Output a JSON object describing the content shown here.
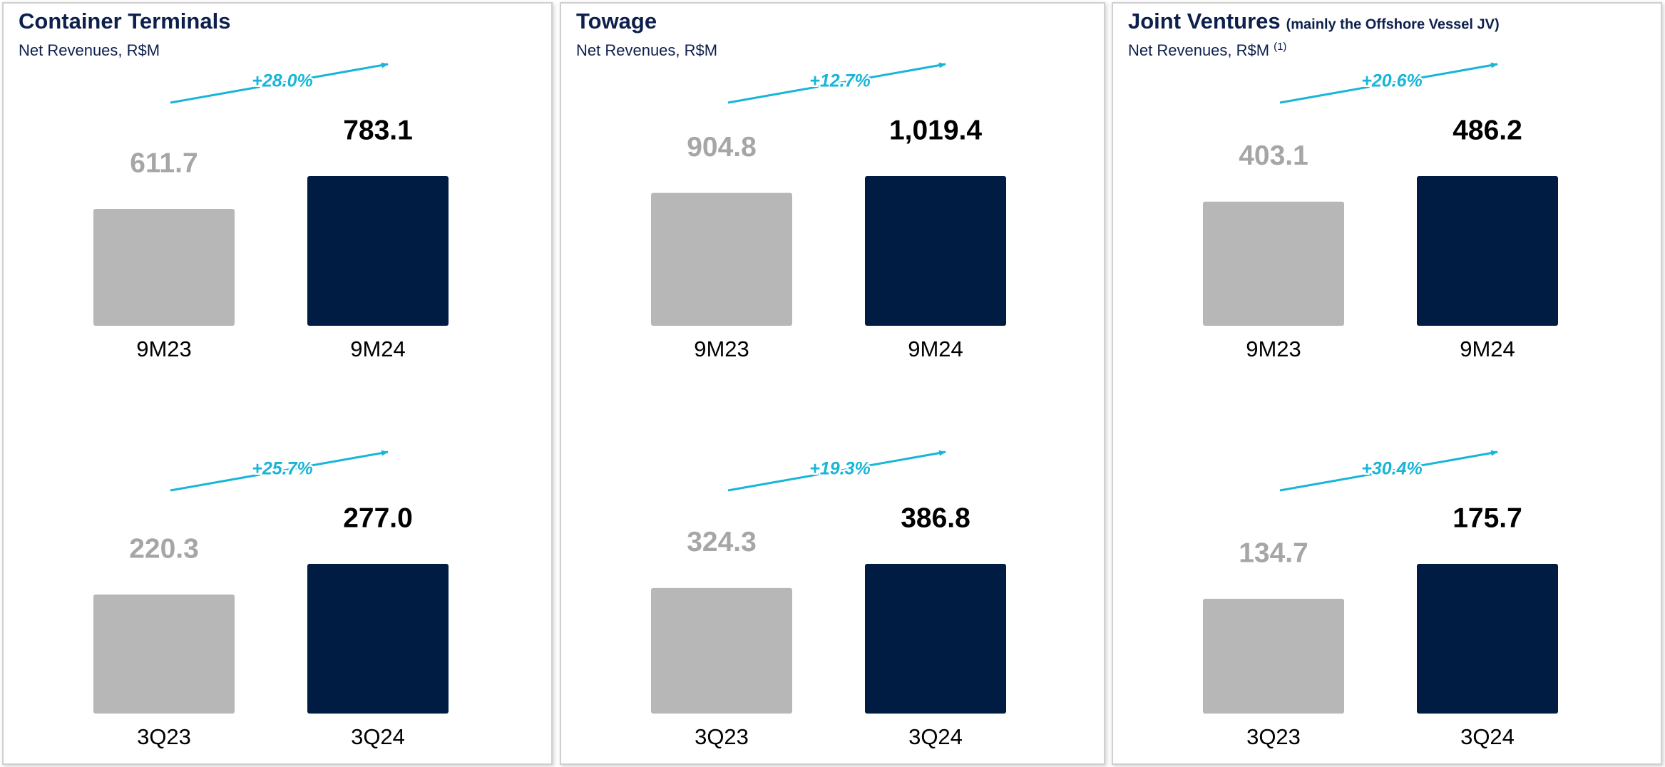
{
  "chart_data": [
    {
      "type": "bar",
      "title": "Container Terminals",
      "subtitle": "Net Revenues, R$M",
      "categories": [
        "9M23",
        "9M24"
      ],
      "values": [
        611.7,
        783.1
      ],
      "value_labels": [
        "611.7",
        "783.1"
      ],
      "colors": [
        "#b7b7b7",
        "#001c43"
      ],
      "annotation": "+28.0%"
    },
    {
      "type": "bar",
      "categories": [
        "3Q23",
        "3Q24"
      ],
      "values": [
        220.3,
        277.0
      ],
      "value_labels": [
        "220.3",
        "277.0"
      ],
      "colors": [
        "#b7b7b7",
        "#001c43"
      ],
      "annotation": "+25.7%"
    },
    {
      "type": "bar",
      "title": "Towage",
      "subtitle": "Net Revenues, R$M",
      "categories": [
        "9M23",
        "9M24"
      ],
      "values": [
        904.8,
        1019.4
      ],
      "value_labels": [
        "904.8",
        "1,019.4"
      ],
      "colors": [
        "#b7b7b7",
        "#001c43"
      ],
      "annotation": "+12.7%"
    },
    {
      "type": "bar",
      "categories": [
        "3Q23",
        "3Q24"
      ],
      "values": [
        324.3,
        386.8
      ],
      "value_labels": [
        "324.3",
        "386.8"
      ],
      "colors": [
        "#b7b7b7",
        "#001c43"
      ],
      "annotation": "+19.3%"
    },
    {
      "type": "bar",
      "title": "Joint Ventures",
      "title_note": "(mainly the Offshore Vessel JV)",
      "subtitle": "Net Revenues, R$M",
      "subtitle_note": "(1)",
      "categories": [
        "9M23",
        "9M24"
      ],
      "values": [
        403.1,
        486.2
      ],
      "value_labels": [
        "403.1",
        "486.2"
      ],
      "colors": [
        "#b7b7b7",
        "#001c43"
      ],
      "annotation": "+20.6%"
    },
    {
      "type": "bar",
      "categories": [
        "3Q23",
        "3Q24"
      ],
      "values": [
        134.7,
        175.7
      ],
      "value_labels": [
        "134.7",
        "175.7"
      ],
      "colors": [
        "#b7b7b7",
        "#001c43"
      ],
      "annotation": "+30.4%"
    }
  ]
}
